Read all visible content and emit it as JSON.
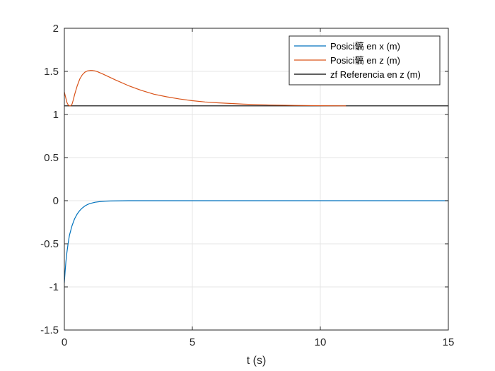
{
  "chart_data": {
    "type": "line",
    "xlabel": "t (s)",
    "ylabel": "",
    "xlim": [
      0,
      15
    ],
    "ylim": [
      -1.5,
      2
    ],
    "grid": true,
    "legend_position": "top-right",
    "xticks": [
      0,
      5,
      10,
      15
    ],
    "xtick_labels": [
      "0",
      "5",
      "10",
      "15"
    ],
    "yticks": [
      -1.5,
      -1,
      -0.5,
      0,
      0.5,
      1,
      1.5,
      2
    ],
    "ytick_labels": [
      "-1.5",
      "-1",
      "-0.5",
      "0",
      "0.5",
      "1",
      "1.5",
      "2"
    ],
    "series": [
      {
        "name": "Posici髇 en x (m)",
        "color": "#0072BD",
        "x": [
          0,
          0.03,
          0.06,
          0.1,
          0.15,
          0.2,
          0.3,
          0.4,
          0.5,
          0.6,
          0.7,
          0.8,
          0.9,
          1.0,
          1.2,
          1.4,
          1.6,
          1.8,
          2.0,
          2.5,
          3,
          4,
          5,
          6,
          8,
          10,
          12,
          15
        ],
        "y": [
          -0.95,
          -0.82,
          -0.71,
          -0.6,
          -0.49,
          -0.4,
          -0.29,
          -0.21,
          -0.155,
          -0.115,
          -0.085,
          -0.062,
          -0.045,
          -0.033,
          -0.018,
          -0.01,
          -0.005,
          -0.003,
          -0.002,
          0,
          0,
          0,
          0,
          0,
          0,
          0,
          0,
          0
        ]
      },
      {
        "name": "Posici髇 en z (m)",
        "color": "#D95319",
        "x": [
          0,
          0.05,
          0.1,
          0.15,
          0.2,
          0.25,
          0.3,
          0.35,
          0.4,
          0.5,
          0.6,
          0.7,
          0.8,
          0.9,
          1.0,
          1.1,
          1.2,
          1.3,
          1.5,
          1.75,
          2.0,
          2.5,
          3.0,
          3.5,
          4.0,
          4.5,
          5.0,
          5.5,
          6.0,
          7.0,
          8.0,
          9.0,
          10.0,
          11.0
        ],
        "y": [
          1.26,
          1.2,
          1.14,
          1.11,
          1.1,
          1.1,
          1.12,
          1.17,
          1.23,
          1.33,
          1.41,
          1.46,
          1.49,
          1.505,
          1.51,
          1.51,
          1.505,
          1.495,
          1.47,
          1.435,
          1.4,
          1.335,
          1.28,
          1.235,
          1.205,
          1.18,
          1.16,
          1.145,
          1.135,
          1.12,
          1.11,
          1.105,
          1.102,
          1.1
        ]
      },
      {
        "name": "zf Referencia en z (m)",
        "color": "#000000",
        "x": [
          0,
          15
        ],
        "y": [
          1.1,
          1.1
        ]
      }
    ]
  }
}
